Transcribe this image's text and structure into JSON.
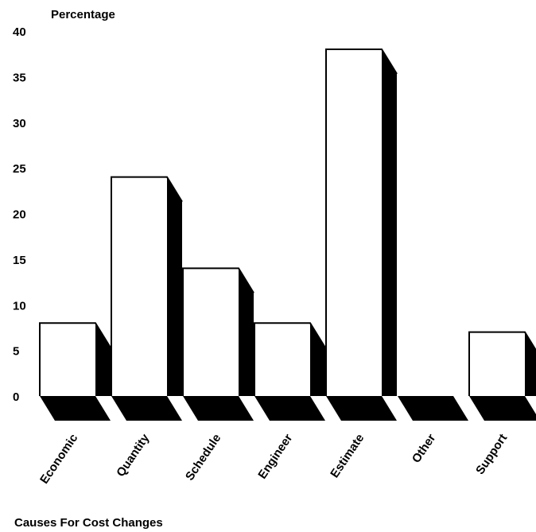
{
  "chart_data": {
    "type": "bar",
    "ylabel": "Percentage",
    "xlabel": "Causes For Cost Changes",
    "categories": [
      "Economic",
      "Quantity",
      "Schedule",
      "Engineer",
      "Estimate",
      "Other",
      "Support"
    ],
    "values": [
      8,
      24,
      14,
      8,
      38,
      0,
      7
    ],
    "ylim": [
      0,
      40
    ],
    "yticks": [
      0,
      5,
      10,
      15,
      20,
      25,
      30,
      35,
      40
    ],
    "grid": false,
    "style": "3d",
    "colors": {
      "front": "#ffffff",
      "side": "#000000",
      "outline": "#000000"
    }
  }
}
